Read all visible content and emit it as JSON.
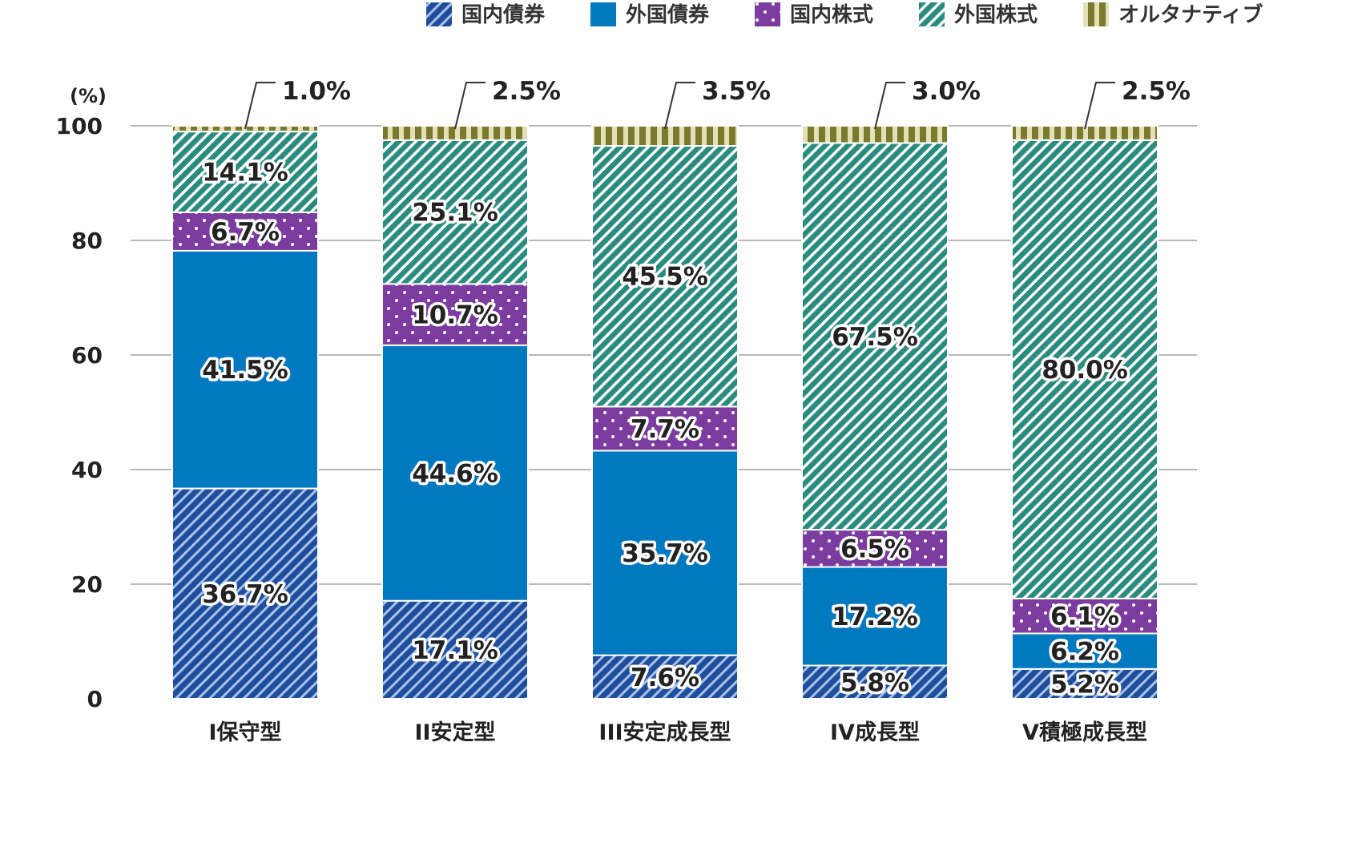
{
  "chart_data": {
    "type": "bar",
    "stacked": true,
    "unit_label": "(%)",
    "ylim": [
      0,
      100
    ],
    "yticks": [
      0,
      20,
      40,
      60,
      80,
      100
    ],
    "grid": true,
    "legend_position": "top-right",
    "categories": [
      "I保守型",
      "II安定型",
      "III安定成長型",
      "IV成長型",
      "V積極成長型"
    ],
    "series": [
      {
        "name": "国内債券",
        "values": [
          36.7,
          17.1,
          7.6,
          5.8,
          5.2
        ],
        "labels": [
          "36.7%",
          "17.1%",
          "7.6%",
          "5.8%",
          "5.2%"
        ],
        "color": "#1f4e9c",
        "pattern": "hatch"
      },
      {
        "name": "外国債券",
        "values": [
          41.5,
          44.6,
          35.7,
          17.2,
          6.2
        ],
        "labels": [
          "41.5%",
          "44.6%",
          "35.7%",
          "17.2%",
          "6.2%"
        ],
        "color": "#0079c1",
        "pattern": "solid"
      },
      {
        "name": "国内株式",
        "values": [
          6.7,
          10.7,
          7.7,
          6.5,
          6.1
        ],
        "labels": [
          "6.7%",
          "10.7%",
          "7.7%",
          "6.5%",
          "6.1%"
        ],
        "color": "#7b3b9f",
        "pattern": "dots"
      },
      {
        "name": "外国株式",
        "values": [
          14.1,
          25.1,
          45.5,
          67.5,
          80.0
        ],
        "labels": [
          "14.1%",
          "25.1%",
          "45.5%",
          "67.5%",
          "80.0%"
        ],
        "color": "#2a8c7e",
        "pattern": "hatch"
      },
      {
        "name": "オルタナティブ",
        "values": [
          1.0,
          2.5,
          3.5,
          3.0,
          2.5
        ],
        "labels": [
          "1.0%",
          "2.5%",
          "3.5%",
          "3.0%",
          "2.5%"
        ],
        "color": "#7a7a2e",
        "pattern": "stripes"
      }
    ]
  }
}
